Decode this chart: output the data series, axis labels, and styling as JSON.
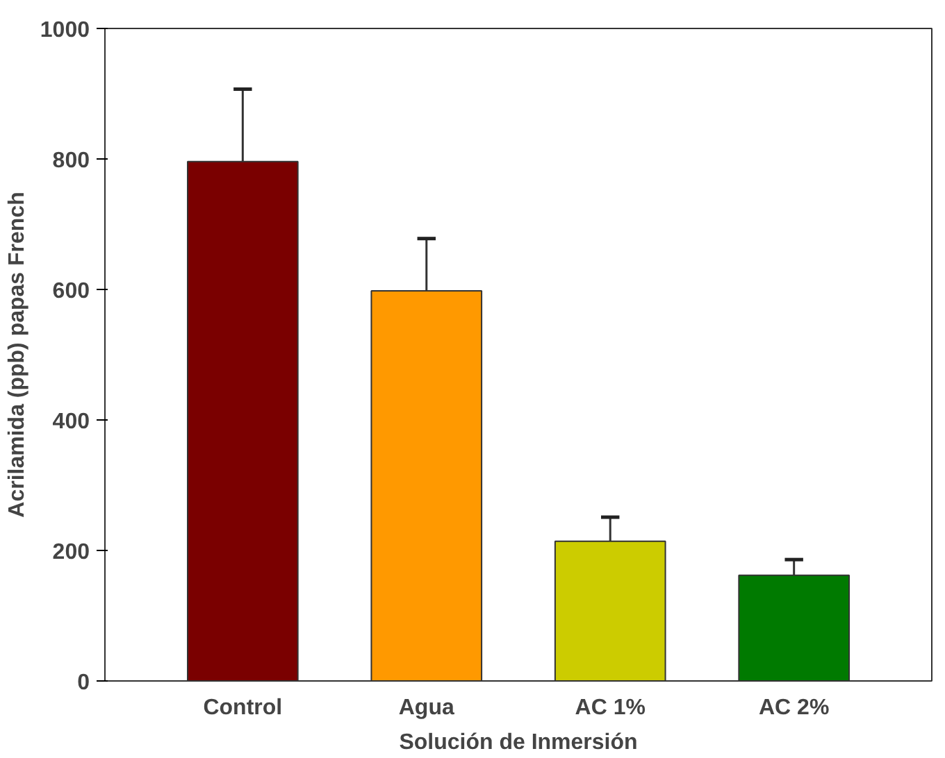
{
  "chart_data": {
    "type": "bar",
    "xlabel": "Solución de Inmersión",
    "ylabel": "Acrilamida (ppb) papas French",
    "categories": [
      "Control",
      "Agua",
      "AC 1%",
      "AC 2%"
    ],
    "values": [
      796,
      598,
      214,
      162
    ],
    "colors": [
      "#7a0000",
      "#ff9900",
      "#cccc00",
      "#007a00"
    ],
    "errors": [
      [
        796,
        907
      ],
      [
        598,
        678
      ],
      [
        214,
        251
      ],
      [
        162,
        186
      ]
    ],
    "ylim": [
      0,
      1000
    ],
    "yticks": [
      0,
      200,
      400,
      600,
      800,
      1000
    ],
    "grid": false
  }
}
